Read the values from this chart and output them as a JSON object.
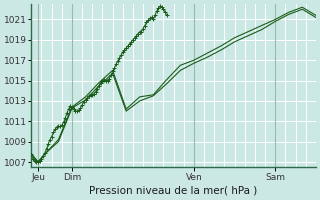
{
  "xlabel": "Pression niveau de la mer( hPa )",
  "bg_color": "#cce8e4",
  "grid_color": "#ffffff",
  "grid_color_minor": "#ddeee8",
  "line_color": "#1a5c1a",
  "ylim": [
    1006.5,
    1022.5
  ],
  "yticks": [
    1007,
    1009,
    1011,
    1013,
    1015,
    1017,
    1019,
    1021
  ],
  "xlim": [
    0,
    84
  ],
  "day_positions": [
    2,
    12,
    48,
    72
  ],
  "day_labels": [
    "Jeu",
    "Dim",
    "Ven",
    "Sam"
  ],
  "vline_positions": [
    2,
    12,
    48,
    72
  ],
  "series1_x": [
    0,
    0.5,
    1,
    1.5,
    2,
    2.5,
    3,
    3.5,
    4,
    4.5,
    5,
    5.5,
    6,
    6.5,
    7,
    7.5,
    8,
    8.5,
    9,
    9.5,
    10,
    10.5,
    11,
    11.5,
    12,
    12.5,
    13,
    13.5,
    14,
    14.5,
    15,
    15.5,
    16,
    16.5,
    17,
    17.5,
    18,
    18.5,
    19,
    19.5,
    20,
    20.5,
    21,
    21.5,
    22,
    22.5,
    23,
    23.5,
    24,
    24.5,
    25,
    25.5,
    26,
    26.5,
    27,
    27.5,
    28,
    28.5,
    29,
    29.5,
    30,
    30.5,
    31,
    31.5,
    32,
    32.5,
    33,
    33.5,
    34,
    34.5,
    35,
    35.5,
    36,
    36.5,
    37,
    37.5,
    38,
    38.5,
    39,
    39.5,
    40
  ],
  "series1_y": [
    1007.8,
    1007.3,
    1007.1,
    1007.0,
    1007.0,
    1007.1,
    1007.3,
    1007.6,
    1007.9,
    1008.3,
    1008.8,
    1009.2,
    1009.5,
    1009.9,
    1010.2,
    1010.4,
    1010.5,
    1010.5,
    1010.6,
    1010.9,
    1011.3,
    1011.8,
    1012.2,
    1012.5,
    1012.4,
    1012.2,
    1012.0,
    1012.0,
    1012.1,
    1012.3,
    1012.6,
    1012.9,
    1013.1,
    1013.3,
    1013.5,
    1013.6,
    1013.6,
    1013.7,
    1013.9,
    1014.2,
    1014.5,
    1014.8,
    1015.0,
    1015.1,
    1015.0,
    1015.0,
    1015.2,
    1015.5,
    1015.9,
    1016.2,
    1016.6,
    1016.9,
    1017.2,
    1017.5,
    1017.8,
    1018.0,
    1018.2,
    1018.4,
    1018.6,
    1018.8,
    1019.0,
    1019.2,
    1019.4,
    1019.6,
    1019.8,
    1019.8,
    1020.1,
    1020.4,
    1020.7,
    1020.9,
    1021.1,
    1021.2,
    1021.0,
    1021.4,
    1021.8,
    1022.1,
    1022.3,
    1022.2,
    1022.0,
    1021.7,
    1021.4
  ],
  "series2_x": [
    0,
    2,
    4,
    8,
    12,
    16,
    20,
    24,
    28,
    32,
    36,
    40,
    44,
    48,
    52,
    56,
    60,
    64,
    68,
    72,
    76,
    80,
    84
  ],
  "series2_y": [
    1007.8,
    1007.0,
    1007.8,
    1009.2,
    1012.4,
    1013.4,
    1014.8,
    1016.0,
    1012.2,
    1013.4,
    1013.6,
    1015.1,
    1016.5,
    1017.0,
    1017.7,
    1018.4,
    1019.2,
    1019.8,
    1020.4,
    1021.0,
    1021.7,
    1022.2,
    1021.4
  ],
  "series3_x": [
    0,
    2,
    4,
    8,
    12,
    16,
    20,
    24,
    28,
    32,
    36,
    40,
    44,
    48,
    52,
    56,
    60,
    64,
    68,
    72,
    76,
    80,
    84
  ],
  "series3_y": [
    1007.8,
    1007.0,
    1007.8,
    1009.0,
    1012.3,
    1013.1,
    1014.5,
    1015.7,
    1012.0,
    1013.0,
    1013.5,
    1014.7,
    1016.0,
    1016.7,
    1017.3,
    1018.0,
    1018.8,
    1019.4,
    1020.0,
    1020.8,
    1021.5,
    1022.0,
    1021.2
  ]
}
